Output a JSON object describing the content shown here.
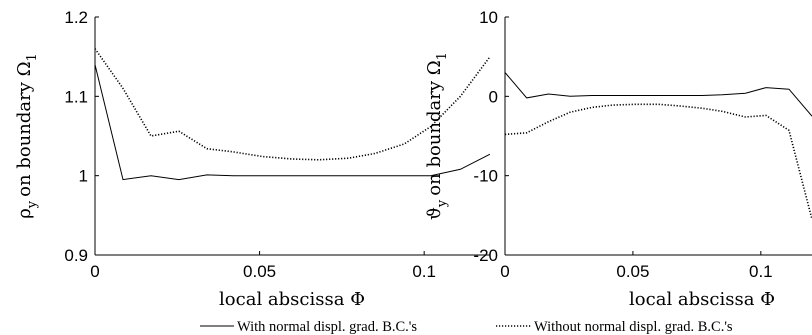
{
  "chart_data": [
    {
      "type": "line",
      "title": "",
      "xlabel": "local abscissa Φ",
      "ylabel": "ρy on boundary Ω1",
      "ylabel_main": "ρ",
      "ylabel_sub": "y",
      "ylabel_mid": "on boundary Ω",
      "ylabel_sub2": "1",
      "xlim": [
        0,
        0.12
      ],
      "ylim": [
        0.9,
        1.2
      ],
      "xticks": [
        0,
        0.05,
        0.1
      ],
      "xtick_labels": [
        "0",
        "0.05",
        "0.1"
      ],
      "yticks": [
        0.9,
        1,
        1.1,
        1.2
      ],
      "ytick_labels": [
        "0.9",
        "1",
        "1.1",
        "1.2"
      ],
      "grid": false,
      "series": [
        {
          "name": "With normal displ. grad. B.C.'s",
          "style": "solid",
          "x": [
            0,
            0.0085,
            0.017,
            0.0255,
            0.034,
            0.042,
            0.051,
            0.06,
            0.068,
            0.077,
            0.085,
            0.094,
            0.102,
            0.111,
            0.12
          ],
          "y": [
            1.14,
            0.995,
            1.0,
            0.995,
            1.001,
            1.0,
            1.0,
            1.0,
            1.0,
            1.0,
            1.0,
            1.0,
            1.0,
            1.008,
            1.027
          ]
        },
        {
          "name": "Without normal displ. grad. B.C.'s",
          "style": "dotted",
          "x": [
            0,
            0.0085,
            0.017,
            0.0255,
            0.034,
            0.042,
            0.051,
            0.06,
            0.068,
            0.077,
            0.085,
            0.094,
            0.102,
            0.111,
            0.12
          ],
          "y": [
            1.16,
            1.11,
            1.05,
            1.056,
            1.034,
            1.03,
            1.024,
            1.021,
            1.02,
            1.022,
            1.028,
            1.04,
            1.062,
            1.1,
            1.15
          ]
        }
      ]
    },
    {
      "type": "line",
      "title": "",
      "xlabel": "local abscissa Φ",
      "ylabel": "ϑy on boundary Ω1",
      "ylabel_main": "ϑ",
      "ylabel_sub": "y",
      "ylabel_mid": "on boundary Ω",
      "ylabel_sub2": "1",
      "xlim": [
        0,
        0.12
      ],
      "ylim": [
        -20,
        10
      ],
      "xticks": [
        0,
        0.05,
        0.1
      ],
      "xtick_labels": [
        "0",
        "0.05",
        "0.1"
      ],
      "yticks": [
        -20,
        -10,
        0,
        10
      ],
      "ytick_labels": [
        "-20",
        "-10",
        "0",
        "10"
      ],
      "grid": false,
      "series": [
        {
          "name": "With normal displ. grad. B.C.'s",
          "style": "solid",
          "x": [
            0,
            0.0085,
            0.017,
            0.0255,
            0.034,
            0.042,
            0.051,
            0.06,
            0.068,
            0.077,
            0.085,
            0.094,
            0.102,
            0.111,
            0.12
          ],
          "y": [
            3.0,
            -0.2,
            0.3,
            0.0,
            0.1,
            0.1,
            0.1,
            0.1,
            0.1,
            0.1,
            0.2,
            0.4,
            1.1,
            0.9,
            -2.5
          ]
        },
        {
          "name": "Without normal displ. grad. B.C.'s",
          "style": "dotted",
          "x": [
            0,
            0.0085,
            0.017,
            0.0255,
            0.034,
            0.042,
            0.051,
            0.06,
            0.068,
            0.077,
            0.085,
            0.094,
            0.102,
            0.111,
            0.12
          ],
          "y": [
            -4.8,
            -4.6,
            -3.2,
            -2.0,
            -1.4,
            -1.1,
            -1.0,
            -1.0,
            -1.2,
            -1.5,
            -1.9,
            -2.6,
            -2.4,
            -4.3,
            -15.5
          ]
        }
      ]
    }
  ],
  "legend": {
    "placement": "bottom",
    "items": [
      {
        "label": "With normal displ. grad. B.C.'s",
        "style": "solid"
      },
      {
        "label": "Without normal displ. grad. B.C.'s",
        "style": "dotted"
      }
    ]
  }
}
